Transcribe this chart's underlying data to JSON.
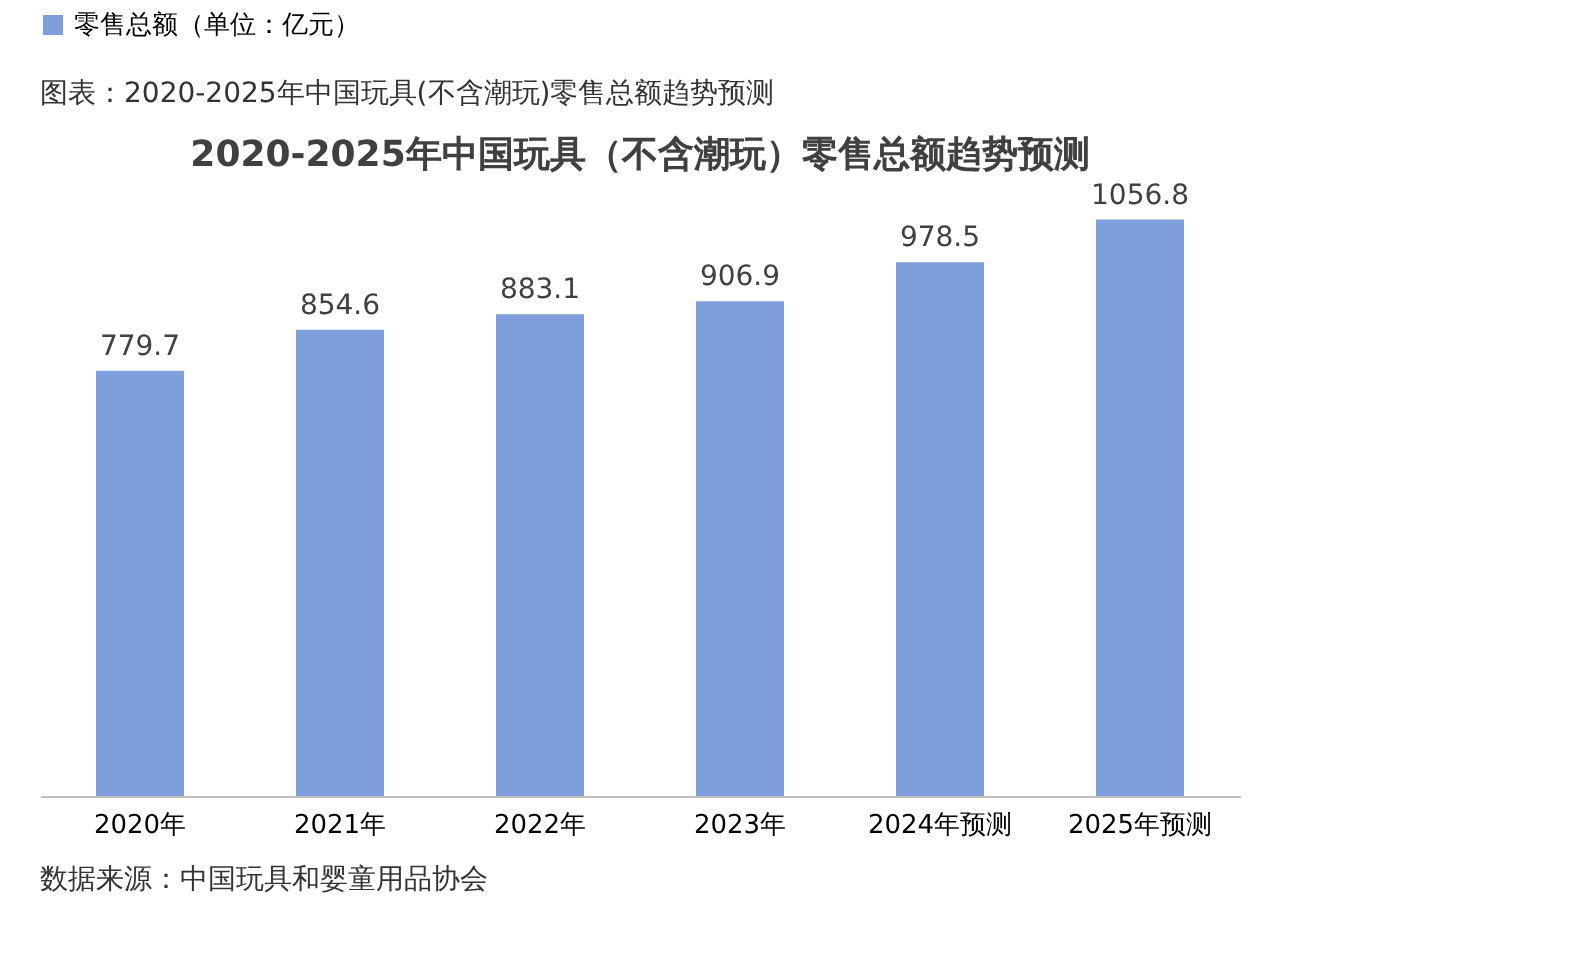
{
  "chart_data": {
    "type": "bar",
    "title": "2020-2025年中国玩具（不含潮玩）零售总额趋势预测",
    "categories": [
      "2020年",
      "2021年",
      "2022年",
      "2023年",
      "2024年预测",
      "2025年预测"
    ],
    "series": [
      {
        "name": "零售总额（单位：亿元）",
        "color": "#7f9fdc",
        "values": [
          779.7,
          854.6,
          883.1,
          906.9,
          978.5,
          1056.8
        ]
      }
    ],
    "data_labels": true,
    "legend": "top",
    "grid": false,
    "annotations": [
      "图表：2020-2025年中国玩具(不含潮玩)零售总额趋势预测",
      "数据来源：中国玩具和婴童用品协会"
    ]
  }
}
